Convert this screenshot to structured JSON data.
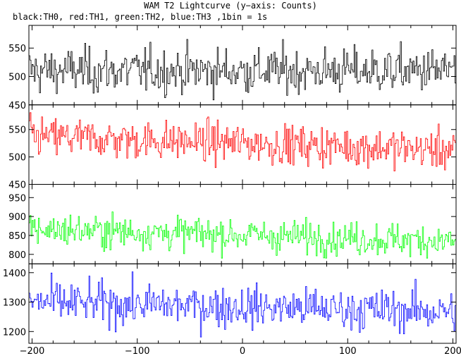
{
  "chart_data": {
    "type": "line",
    "title": "WAM T2 Lightcurve (y−axis: Counts)",
    "subtitle": "black:TH0, red:TH1, green:TH2, blue:TH3 ,1bin = 1s",
    "xlim": [
      -203,
      203
    ],
    "xticks": [
      -200,
      -100,
      0,
      100,
      200
    ],
    "xtick_labels": [
      "−200",
      "−100",
      "0",
      "100",
      "200"
    ],
    "bin_seconds": 1,
    "grid": false,
    "panels": [
      {
        "name": "TH0",
        "color": "#000000",
        "ylim": [
          450,
          590
        ],
        "yticks": [
          450,
          500,
          550
        ],
        "mean": 510,
        "noise": 20,
        "trend": 0,
        "min": 450,
        "max": 595
      },
      {
        "name": "TH1",
        "color": "#ff0000",
        "ylim": [
          450,
          595
        ],
        "yticks": [
          450,
          500,
          550
        ],
        "mean": 537,
        "noise": 18,
        "trend": -0.06,
        "min": 455,
        "max": 590
      },
      {
        "name": "TH2",
        "color": "#00ff00",
        "ylim": [
          775,
          985
        ],
        "yticks": [
          800,
          850,
          900,
          950
        ],
        "mean": 867,
        "noise": 22,
        "trend": -0.08,
        "min": 790,
        "max": 980
      },
      {
        "name": "TH3",
        "color": "#0000ff",
        "ylim": [
          1160,
          1430
        ],
        "yticks": [
          1200,
          1300,
          1400
        ],
        "mean": 1300,
        "noise": 35,
        "trend": -0.08,
        "min": 1165,
        "max": 1430
      }
    ]
  }
}
